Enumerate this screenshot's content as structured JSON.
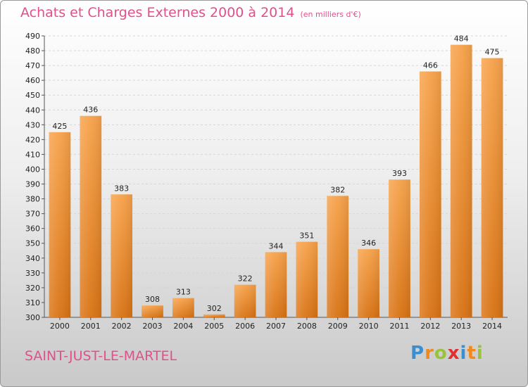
{
  "title": "Achats et Charges Externes 2000 à 2014",
  "subtitle": "(en milliers d'€)",
  "city": "SAINT-JUST-LE-MARTEL",
  "logo": {
    "letters": [
      "P",
      "r",
      "o",
      "x",
      "i",
      "t",
      "i"
    ],
    "colors": [
      "#3a8fd0",
      "#f08a1c",
      "#9ac23c",
      "#e03030",
      "#3a8fd0",
      "#f08a1c",
      "#9ac23c"
    ]
  },
  "chart_data": {
    "type": "bar",
    "categories": [
      "2000",
      "2001",
      "2002",
      "2003",
      "2004",
      "2005",
      "2006",
      "2007",
      "2008",
      "2009",
      "2010",
      "2011",
      "2012",
      "2013",
      "2014"
    ],
    "values": [
      425,
      436,
      383,
      308,
      313,
      302,
      322,
      344,
      351,
      382,
      346,
      393,
      466,
      484,
      475
    ],
    "ylim": [
      300,
      490
    ],
    "ytick_step": 10,
    "bar_color": "#f0922e",
    "grid": true
  }
}
